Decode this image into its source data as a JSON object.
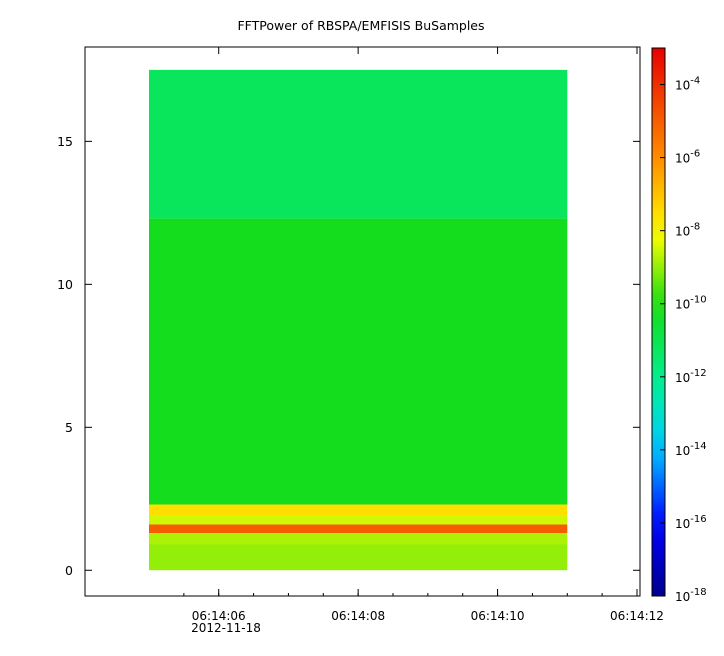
{
  "chart_data": {
    "type": "heatmap",
    "title": "FFTPower of RBSPA/EMFISIS  BuSamples",
    "xlabel": "",
    "ylabel": "",
    "x_date_label": "2012-11-18",
    "x_ticks": [
      {
        "value": "06:14:06",
        "label": "06:14:06"
      },
      {
        "value": "06:14:08",
        "label": "06:14:08"
      },
      {
        "value": "06:14:10",
        "label": "06:14:10"
      },
      {
        "value": "06:14:12",
        "label": "06:14:12"
      }
    ],
    "x_range": [
      "06:14:05.0",
      "06:14:12.0"
    ],
    "data_x_range": [
      "06:14:05.0",
      "06:14:11.0"
    ],
    "y_ticks": [
      0,
      5,
      10,
      15
    ],
    "ylim": [
      -0.9,
      18.3
    ],
    "data_y_range": [
      0,
      17.5
    ],
    "colorbar": {
      "scale": "log",
      "range": [
        1e-18,
        0.001
      ],
      "tick_labels": [
        {
          "base": "10",
          "exp": "-4",
          "value": 0.0001
        },
        {
          "base": "10",
          "exp": "-6",
          "value": 1e-06
        },
        {
          "base": "10",
          "exp": "-8",
          "value": 1e-08
        },
        {
          "base": "10",
          "exp": "-10",
          "value": 1e-10
        },
        {
          "base": "10",
          "exp": "-12",
          "value": 1e-12
        },
        {
          "base": "10",
          "exp": "-14",
          "value": 1e-14
        },
        {
          "base": "10",
          "exp": "-16",
          "value": 1e-16
        },
        {
          "base": "10",
          "exp": "-18",
          "value": 1e-18
        }
      ]
    },
    "regions": [
      {
        "y_range": [
          12.3,
          17.5
        ],
        "log_power": -11.2
      },
      {
        "y_range": [
          2.3,
          12.3
        ],
        "log_power": -10.2
      },
      {
        "y_range": [
          1.9,
          2.3
        ],
        "log_power": -7.5
      },
      {
        "y_range": [
          1.6,
          1.9
        ],
        "log_power": -8.5
      },
      {
        "y_range": [
          1.3,
          1.6
        ],
        "log_power": -5.0
      },
      {
        "y_range": [
          0.9,
          1.3
        ],
        "log_power": -8.8
      },
      {
        "y_range": [
          0.0,
          0.9
        ],
        "log_power": -9.0
      }
    ]
  }
}
